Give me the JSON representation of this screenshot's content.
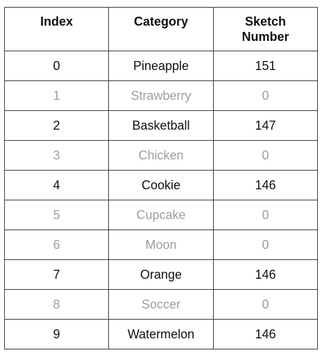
{
  "table": {
    "headers": [
      "Index",
      "Category",
      "Sketch\nNumber"
    ],
    "header_lines": {
      "index": "Index",
      "category": "Category",
      "sketch_line1": "Sketch",
      "sketch_line2": "Number"
    },
    "rows": [
      {
        "index": "0",
        "category": "Pineapple",
        "sketch_number": "151",
        "dimmed": false
      },
      {
        "index": "1",
        "category": "Strawberry",
        "sketch_number": "0",
        "dimmed": true
      },
      {
        "index": "2",
        "category": "Basketball",
        "sketch_number": "147",
        "dimmed": false
      },
      {
        "index": "3",
        "category": "Chicken",
        "sketch_number": "0",
        "dimmed": true
      },
      {
        "index": "4",
        "category": "Cookie",
        "sketch_number": "146",
        "dimmed": false
      },
      {
        "index": "5",
        "category": "Cupcake",
        "sketch_number": "0",
        "dimmed": true
      },
      {
        "index": "6",
        "category": "Moon",
        "sketch_number": "0",
        "dimmed": true
      },
      {
        "index": "7",
        "category": "Orange",
        "sketch_number": "146",
        "dimmed": false
      },
      {
        "index": "8",
        "category": "Soccer",
        "sketch_number": "0",
        "dimmed": true
      },
      {
        "index": "9",
        "category": "Watermelon",
        "sketch_number": "146",
        "dimmed": false
      }
    ]
  },
  "colors": {
    "text": "#111111",
    "dimmed_text": "#9e9e9e",
    "border": "#3a3a3a"
  }
}
